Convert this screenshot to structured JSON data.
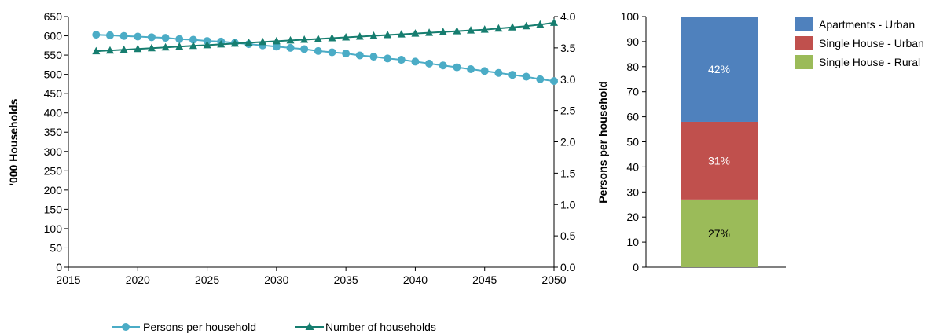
{
  "chart_data": [
    {
      "type": "line",
      "x": [
        2017,
        2018,
        2019,
        2020,
        2021,
        2022,
        2023,
        2024,
        2025,
        2026,
        2027,
        2028,
        2029,
        2030,
        2031,
        2032,
        2033,
        2034,
        2035,
        2036,
        2037,
        2038,
        2039,
        2040,
        2041,
        2042,
        2043,
        2044,
        2045,
        2046,
        2047,
        2048,
        2049,
        2050
      ],
      "xlim": [
        2015,
        2050
      ],
      "xticks": [
        "2015",
        "2020",
        "2025",
        "2030",
        "2035",
        "2040",
        "2045",
        "2050"
      ],
      "ylabel": "'000 Households",
      "ylim": [
        0,
        650
      ],
      "yticks": [
        "0",
        "50",
        "100",
        "150",
        "200",
        "250",
        "300",
        "350",
        "400",
        "450",
        "500",
        "550",
        "600",
        "650"
      ],
      "y2label": "Persons per household",
      "y2lim": [
        0.0,
        4.0
      ],
      "y2ticks": [
        "0.0",
        "0.5",
        "1.0",
        "1.5",
        "2.0",
        "2.5",
        "3.0",
        "3.5",
        "4.0"
      ],
      "series": [
        {
          "name": "Persons per household",
          "axis": "right",
          "marker": "circle",
          "color": "#4BACC6",
          "values": [
            3.71,
            3.7,
            3.69,
            3.68,
            3.67,
            3.66,
            3.64,
            3.63,
            3.61,
            3.6,
            3.58,
            3.56,
            3.54,
            3.52,
            3.5,
            3.48,
            3.45,
            3.43,
            3.41,
            3.38,
            3.36,
            3.33,
            3.31,
            3.28,
            3.25,
            3.22,
            3.19,
            3.16,
            3.13,
            3.1,
            3.07,
            3.04,
            3.0,
            2.97
          ]
        },
        {
          "name": "Number of households",
          "axis": "left",
          "marker": "triangle",
          "color": "#167D6F",
          "values": [
            560,
            562,
            564,
            566,
            568,
            570,
            572,
            574,
            576,
            578,
            580,
            582,
            584,
            586,
            588,
            590,
            592,
            594,
            596,
            598,
            600,
            602,
            604,
            606,
            608,
            610,
            612,
            614,
            616,
            619,
            622,
            625,
            629,
            634
          ]
        }
      ],
      "legend": "bottom"
    },
    {
      "type": "bar",
      "stacked": true,
      "ylabel": "Persons per household",
      "ylim": [
        0,
        100
      ],
      "yticks": [
        "0",
        "10",
        "20",
        "30",
        "40",
        "50",
        "60",
        "70",
        "80",
        "90",
        "100"
      ],
      "series": [
        {
          "name": "Single House - Rural",
          "value": 27,
          "label": "27%",
          "color": "#9BBB59",
          "label_color": "#000000"
        },
        {
          "name": "Single House - Urban",
          "value": 31,
          "label": "31%",
          "color": "#C0504D",
          "label_color": "#FFFFFF"
        },
        {
          "name": "Apartments - Urban",
          "value": 42,
          "label": "42%",
          "color": "#4F81BD",
          "label_color": "#FFFFFF"
        }
      ],
      "legend_order": [
        "Apartments - Urban",
        "Single House - Urban",
        "Single House - Rural"
      ],
      "legend": "top-right"
    }
  ]
}
